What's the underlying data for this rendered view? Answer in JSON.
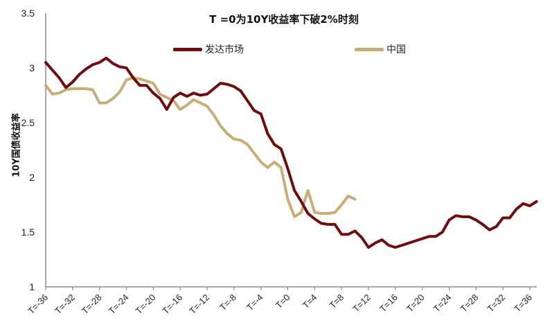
{
  "chart_data": {
    "type": "line",
    "title": "T =0为10Y收益率下破2%时刻",
    "xlabel": "",
    "ylabel": "10Y国债收益率",
    "ylim": [
      1,
      3.5
    ],
    "yticks": [
      "3.5",
      "3",
      "2.5",
      "2",
      "1.5",
      "1"
    ],
    "xtick_labels": [
      "T=-36",
      "T=-32",
      "T=-28",
      "T=-24",
      "T=-20",
      "T=-16",
      "T=-12",
      "T=-8",
      "T=-4",
      "T=0",
      "T=4",
      "T=8",
      "T=12",
      "T=16",
      "T=20",
      "T=24",
      "T=28",
      "T=32",
      "T=36"
    ],
    "x_start": -36,
    "x_end": 36,
    "grid": false,
    "legend_position": "top",
    "series": [
      {
        "name": "发达市场",
        "color": "#6e0d0d",
        "x_start": -36,
        "values": [
          3.05,
          2.98,
          2.91,
          2.82,
          2.87,
          2.94,
          2.99,
          3.03,
          3.05,
          3.09,
          3.04,
          3.01,
          3.0,
          2.91,
          2.84,
          2.84,
          2.77,
          2.72,
          2.62,
          2.73,
          2.77,
          2.74,
          2.77,
          2.75,
          2.76,
          2.81,
          2.86,
          2.85,
          2.83,
          2.79,
          2.7,
          2.61,
          2.58,
          2.4,
          2.3,
          2.26,
          2.08,
          1.88,
          1.78,
          1.67,
          1.62,
          1.58,
          1.57,
          1.57,
          1.48,
          1.48,
          1.51,
          1.45,
          1.36,
          1.4,
          1.43,
          1.38,
          1.36,
          1.38,
          1.4,
          1.42,
          1.44,
          1.46,
          1.46,
          1.5,
          1.61,
          1.65,
          1.64,
          1.64,
          1.61,
          1.57,
          1.52,
          1.55,
          1.63,
          1.63,
          1.71,
          1.76,
          1.74,
          1.78
        ]
      },
      {
        "name": "中国",
        "color": "#c8ad78",
        "x_start": -36,
        "values": [
          2.84,
          2.76,
          2.77,
          2.8,
          2.81,
          2.81,
          2.81,
          2.8,
          2.68,
          2.68,
          2.72,
          2.78,
          2.89,
          2.91,
          2.9,
          2.88,
          2.86,
          2.76,
          2.73,
          2.7,
          2.62,
          2.66,
          2.71,
          2.68,
          2.65,
          2.57,
          2.47,
          2.4,
          2.35,
          2.34,
          2.3,
          2.22,
          2.14,
          2.09,
          2.14,
          2.09,
          1.8,
          1.64,
          1.68,
          1.88,
          1.68,
          1.67,
          1.67,
          1.68,
          1.75,
          1.83,
          1.8
        ]
      }
    ]
  },
  "legend": {
    "items": [
      {
        "label": "发达市场",
        "color": "#6e0d0d"
      },
      {
        "label": "中国",
        "color": "#c8ad78"
      }
    ]
  }
}
